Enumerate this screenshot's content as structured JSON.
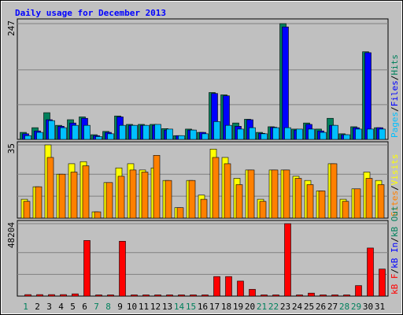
{
  "title": "Daily usage for December 2013",
  "legend_separator": "/",
  "chart_data": [
    {
      "type": "bar",
      "ylim": [
        0,
        247
      ],
      "yticks": [
        247
      ],
      "series": [
        {
          "name": "Hits",
          "color": "#00805c",
          "values": [
            15,
            25,
            57,
            30,
            42,
            48,
            10,
            17,
            50,
            32,
            32,
            32,
            23,
            8,
            22,
            15,
            100,
            95,
            35,
            43,
            15,
            27,
            247,
            22,
            35,
            22,
            45,
            12,
            27,
            187,
            25
          ]
        },
        {
          "name": "Files",
          "color": "#0000ff",
          "values": [
            12,
            18,
            42,
            28,
            35,
            45,
            8,
            15,
            48,
            30,
            30,
            30,
            20,
            8,
            20,
            15,
            98,
            93,
            28,
            42,
            13,
            26,
            240,
            20,
            32,
            18,
            30,
            10,
            25,
            185,
            25
          ]
        },
        {
          "name": "Pages",
          "color": "#00c0ff",
          "values": [
            8,
            15,
            40,
            25,
            30,
            30,
            6,
            12,
            30,
            30,
            30,
            32,
            22,
            8,
            20,
            12,
            38,
            30,
            22,
            25,
            12,
            25,
            25,
            22,
            22,
            15,
            30,
            10,
            22,
            22,
            22
          ]
        }
      ]
    },
    {
      "type": "bar",
      "ylim": [
        0,
        35
      ],
      "yticks": [
        35
      ],
      "series": [
        {
          "name": "Visits",
          "color": "#ffff00",
          "values": [
            9,
            15,
            35,
            21,
            26,
            27,
            3,
            17,
            24,
            26,
            23,
            24,
            18,
            5,
            18,
            11,
            33,
            29,
            19,
            23,
            9,
            23,
            23,
            20,
            18,
            13,
            26,
            9,
            14,
            22,
            18
          ]
        },
        {
          "name": "Sites",
          "color": "#ff8000",
          "values": [
            8,
            15,
            29,
            21,
            22,
            25,
            3,
            17,
            20,
            23,
            22,
            30,
            18,
            5,
            18,
            9,
            29,
            26,
            16,
            23,
            8,
            23,
            23,
            19,
            16,
            13,
            26,
            8,
            14,
            19,
            16
          ]
        }
      ]
    },
    {
      "type": "bar",
      "ylim": [
        0,
        48204
      ],
      "yticks": [
        48204
      ],
      "categories": [
        "1",
        "2",
        "3",
        "4",
        "5",
        "6",
        "7",
        "8",
        "9",
        "10",
        "11",
        "12",
        "13",
        "14",
        "15",
        "16",
        "17",
        "18",
        "19",
        "20",
        "21",
        "22",
        "23",
        "24",
        "25",
        "26",
        "27",
        "28",
        "29",
        "30",
        "31"
      ],
      "category_colors": [
        "#00805c",
        "#000000",
        "#000000",
        "#000000",
        "#000000",
        "#000000",
        "#00805c",
        "#00805c",
        "#000000",
        "#000000",
        "#000000",
        "#000000",
        "#000000",
        "#00805c",
        "#00805c",
        "#000000",
        "#000000",
        "#000000",
        "#000000",
        "#000000",
        "#00805c",
        "#00805c",
        "#000000",
        "#000000",
        "#000000",
        "#000000",
        "#000000",
        "#00805c",
        "#00805c",
        "#000000",
        "#000000"
      ],
      "series": [
        {
          "name": "kB Out",
          "color": "#00805c",
          "values": [
            0,
            0,
            0,
            0,
            0,
            0,
            0,
            0,
            0,
            0,
            0,
            0,
            0,
            0,
            0,
            0,
            0,
            0,
            0,
            0,
            0,
            0,
            0,
            0,
            0,
            0,
            0,
            0,
            0,
            0,
            0
          ]
        },
        {
          "name": "kB In",
          "color": "#0000ff",
          "values": [
            0,
            0,
            0,
            0,
            0,
            0,
            0,
            0,
            0,
            0,
            0,
            0,
            0,
            0,
            0,
            0,
            0,
            0,
            0,
            0,
            0,
            0,
            0,
            0,
            0,
            0,
            0,
            0,
            0,
            0,
            0
          ]
        },
        {
          "name": "kB F",
          "color": "#ff0000",
          "values": [
            1000,
            1000,
            1000,
            1000,
            1500,
            37000,
            800,
            800,
            36500,
            800,
            800,
            800,
            800,
            800,
            800,
            800,
            13000,
            13000,
            10000,
            4500,
            800,
            800,
            48204,
            800,
            2000,
            800,
            800,
            800,
            7000,
            32000,
            18000
          ]
        }
      ]
    }
  ]
}
